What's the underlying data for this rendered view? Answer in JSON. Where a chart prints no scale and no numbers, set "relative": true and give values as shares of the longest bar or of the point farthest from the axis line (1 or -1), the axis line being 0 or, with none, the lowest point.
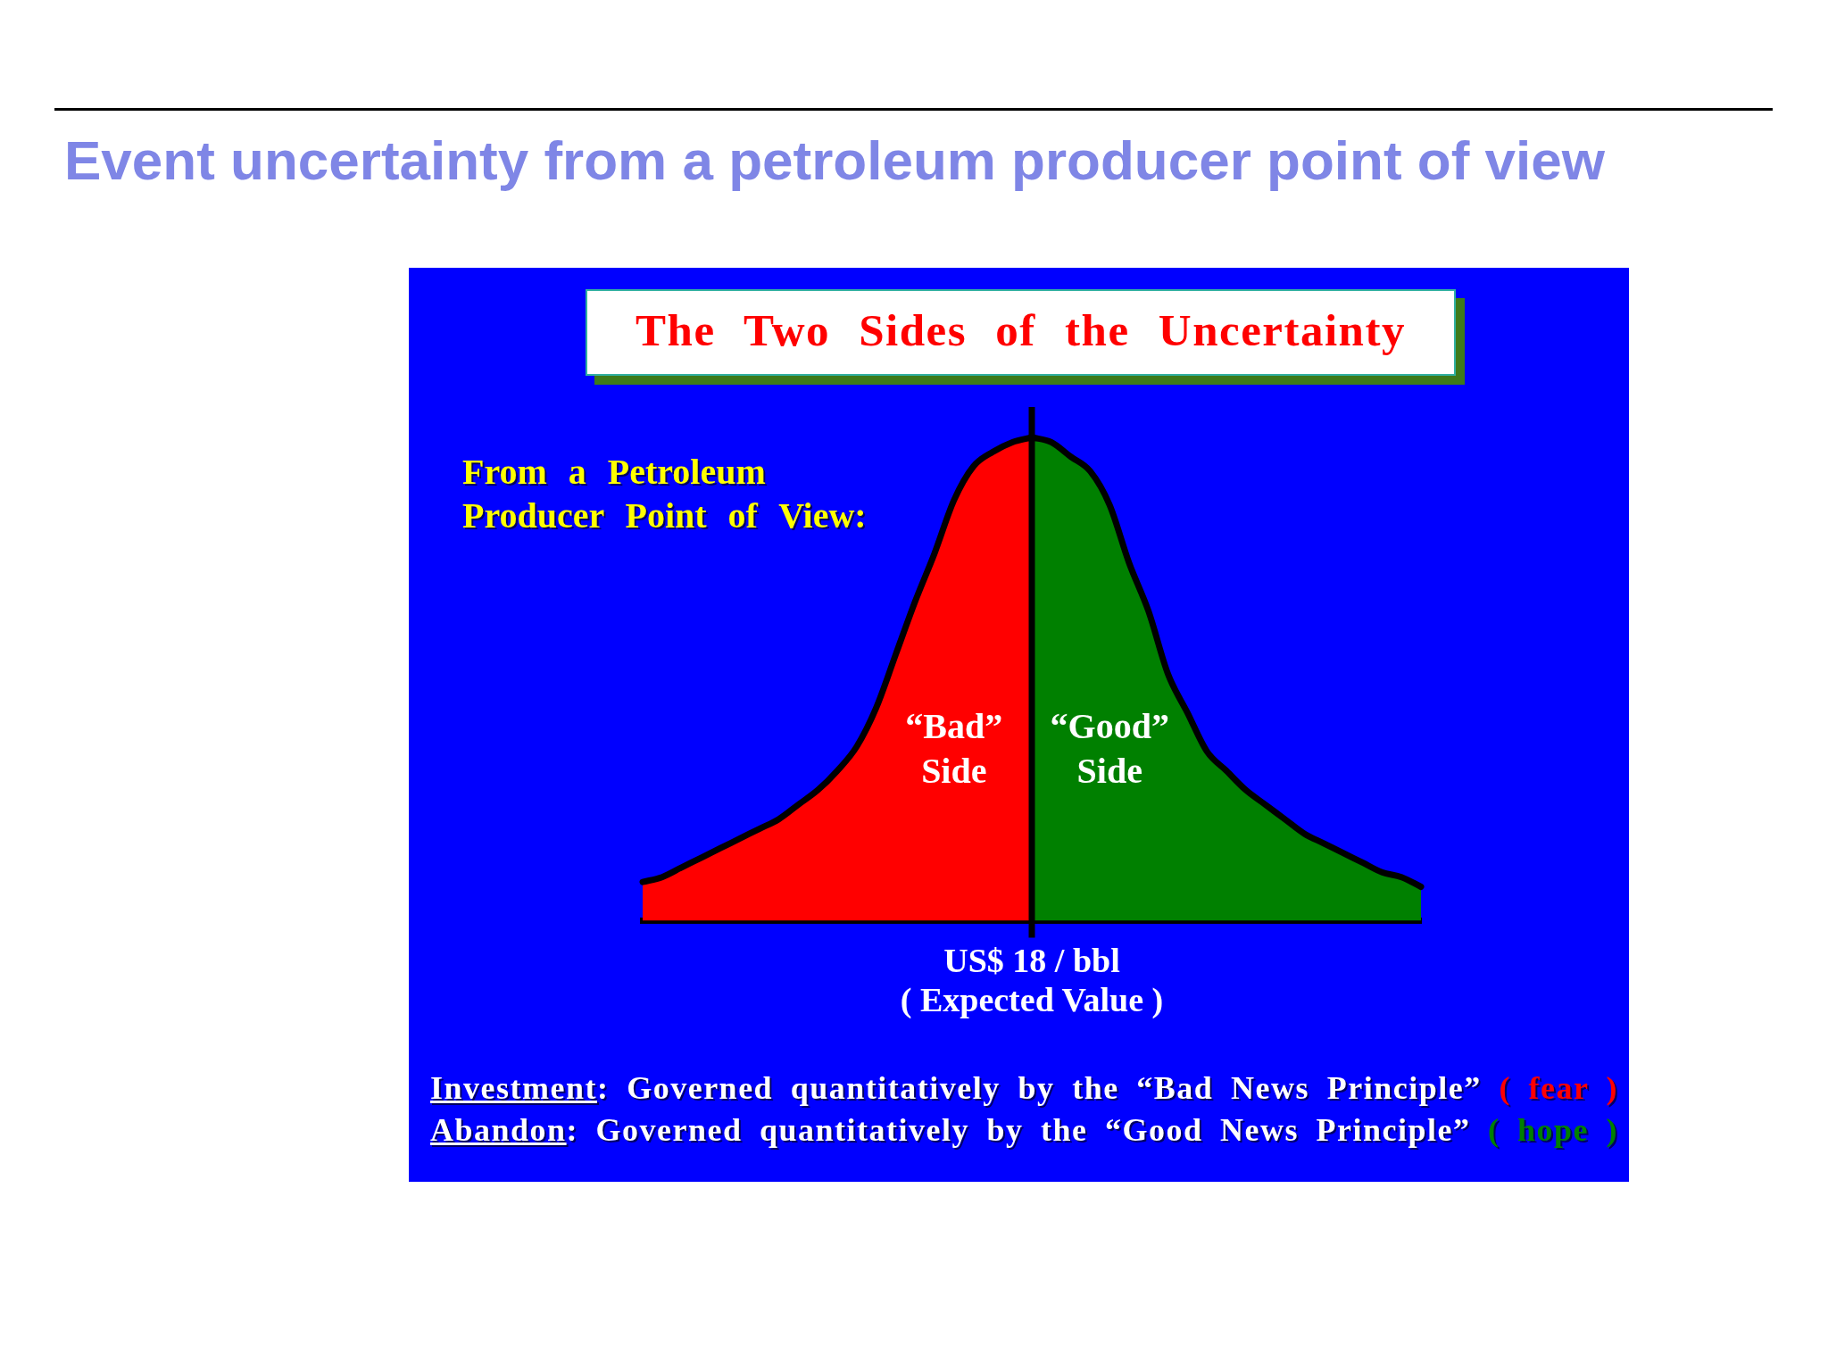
{
  "chart_data": {
    "type": "area",
    "title": "Event uncertainty from a petroleum producer point of view",
    "subtitle": "The Two Sides of the Uncertainty",
    "xlabel": "( Expected Value )",
    "relative": true,
    "categories": [
      null,
      null,
      null,
      null,
      null,
      null,
      null,
      null,
      null,
      null,
      null,
      null,
      null,
      null,
      null,
      null,
      null,
      null,
      null,
      null,
      null,
      null,
      null,
      null,
      null,
      null,
      null,
      null,
      null,
      null,
      null,
      null,
      null,
      null,
      null,
      null,
      null,
      null,
      null,
      null,
      null
    ],
    "series": [
      {
        "name": "“Bad” Side",
        "color": "#ff0000",
        "values": [
          0.08,
          0.09,
          0.11,
          0.13,
          0.15,
          0.17,
          0.19,
          0.21,
          0.24,
          0.27,
          0.31,
          0.36,
          0.44,
          0.55,
          0.66,
          0.76,
          0.87,
          0.94,
          0.97,
          0.99,
          1,
          null,
          null,
          null,
          null,
          null,
          null,
          null,
          null,
          null,
          null,
          null,
          null,
          null,
          null,
          null,
          null,
          null,
          null,
          null,
          null
        ]
      },
      {
        "name": "“Good” Side",
        "color": "#008000",
        "values": [
          null,
          null,
          null,
          null,
          null,
          null,
          null,
          null,
          null,
          null,
          null,
          null,
          null,
          null,
          null,
          null,
          null,
          null,
          null,
          null,
          1,
          0.99,
          0.96,
          0.93,
          0.86,
          0.74,
          0.64,
          0.51,
          0.43,
          0.35,
          0.31,
          0.27,
          0.24,
          0.21,
          0.18,
          0.16,
          0.14,
          0.12,
          0.1,
          0.09,
          0.07
        ]
      }
    ],
    "ref_lines": [
      {
        "axis": "x",
        "label": "US$ 18 / bbl"
      }
    ],
    "annotations": [
      "From a Petroleum Producer Point of View:",
      "Investment: Governed quantitatively by the “Bad News Principle” ( fear )",
      "Abandon: Governed quantitatively by the “Good News Principle” ( hope )"
    ]
  }
}
